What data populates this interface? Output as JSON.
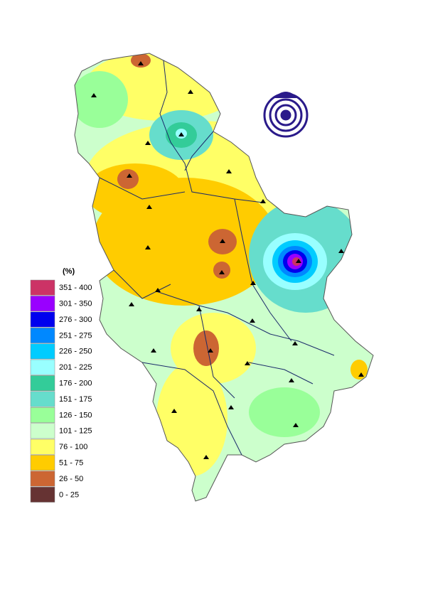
{
  "legend": {
    "title": "(%)",
    "items": [
      {
        "label": "351 - 400",
        "color": "#cc3366"
      },
      {
        "label": "301 - 350",
        "color": "#9900ff"
      },
      {
        "label": "276 - 300",
        "color": "#0000ee"
      },
      {
        "label": "251 - 275",
        "color": "#0088ff"
      },
      {
        "label": "226 - 250",
        "color": "#00ccff"
      },
      {
        "label": "201 - 225",
        "color": "#99ffff"
      },
      {
        "label": "176 - 200",
        "color": "#33cc99"
      },
      {
        "label": "151 - 175",
        "color": "#66ddcc"
      },
      {
        "label": "126 - 150",
        "color": "#99ff99"
      },
      {
        "label": "101 - 125",
        "color": "#ccffcc"
      },
      {
        "label": "76 - 100",
        "color": "#ffff66"
      },
      {
        "label": "51 - 75",
        "color": "#ffcc00"
      },
      {
        "label": "26 - 50",
        "color": "#cc6633"
      },
      {
        "label": "0 - 25",
        "color": "#663333"
      }
    ]
  }
}
